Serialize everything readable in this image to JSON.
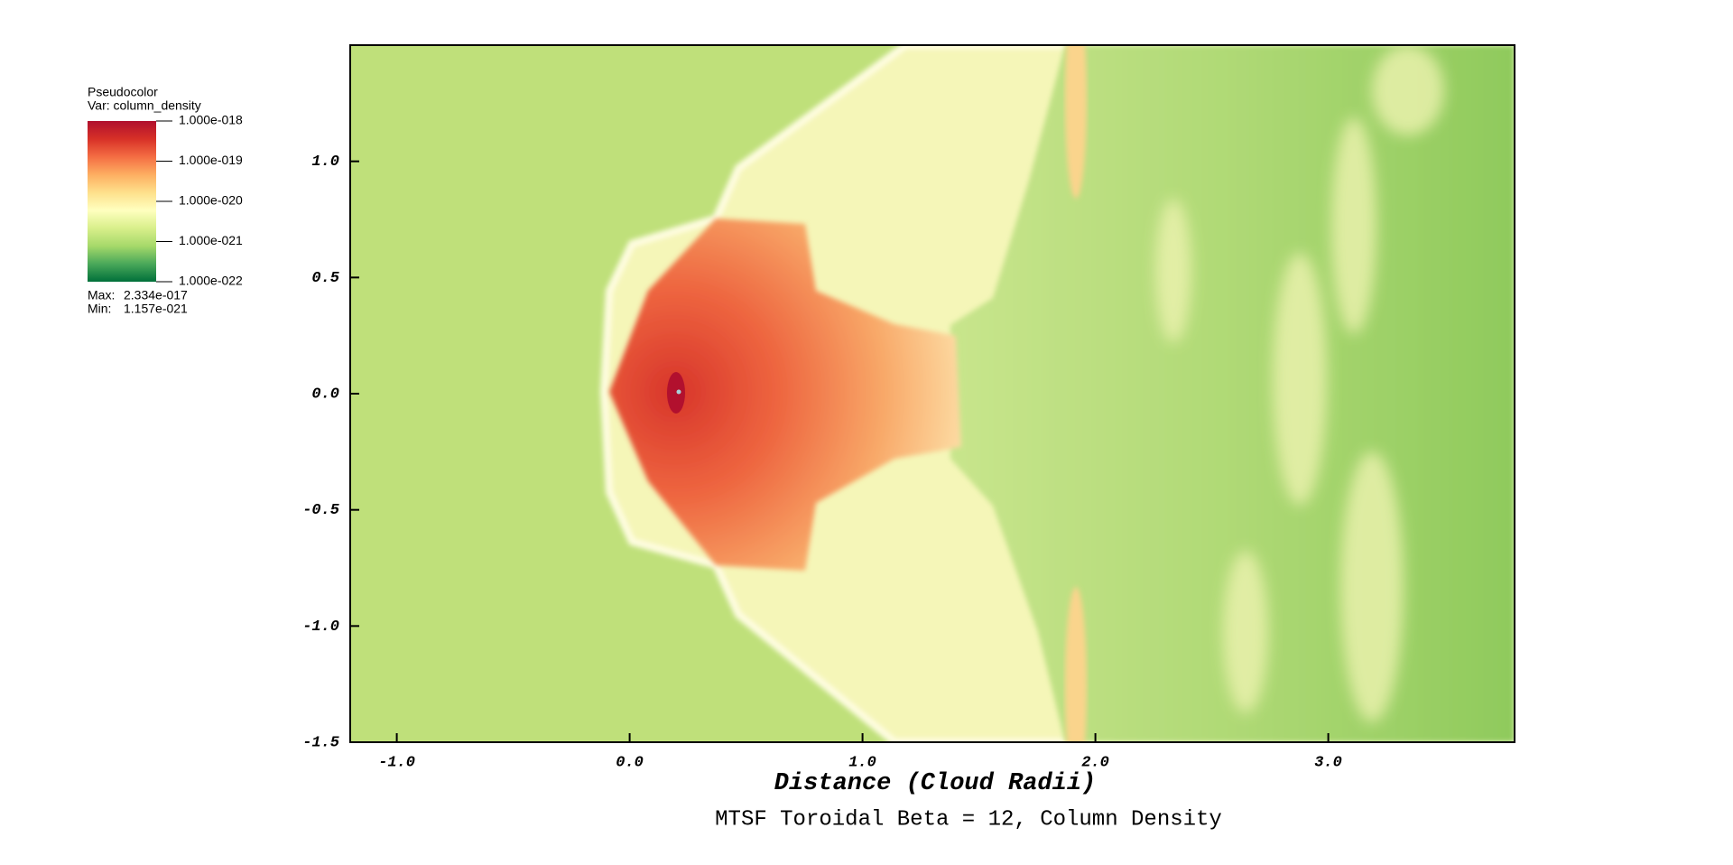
{
  "chart_data": {
    "type": "pseudocolor",
    "title": "MTSF Toroidal Beta = 12, Column Density",
    "xlabel": "Distance (Cloud Radii)",
    "xlim": [
      -1.2,
      3.8
    ],
    "ylim": [
      -1.5,
      1.5
    ],
    "xticks": [
      {
        "value": -1,
        "label": "-1.0"
      },
      {
        "value": 0,
        "label": "0.0"
      },
      {
        "value": 1,
        "label": "1.0"
      },
      {
        "value": 2,
        "label": "2.0"
      },
      {
        "value": 3,
        "label": "3.0"
      }
    ],
    "yticks": [
      {
        "value": -1.5,
        "label": "-1.5"
      },
      {
        "value": -1,
        "label": "-1.0"
      },
      {
        "value": -0.5,
        "label": "-0.5"
      },
      {
        "value": 0,
        "label": "0.0"
      },
      {
        "value": 0.5,
        "label": "0.5"
      },
      {
        "value": 1,
        "label": "1.0"
      }
    ],
    "legend": {
      "plot": "Pseudocolor",
      "variable": "Var: column_density",
      "log": true,
      "clim": [
        1e-22,
        1e-18
      ],
      "ticks": [
        {
          "value": 1e-18,
          "label": "1.000e-018"
        },
        {
          "value": 1e-19,
          "label": "1.000e-019"
        },
        {
          "value": 1e-20,
          "label": "1.000e-020"
        },
        {
          "value": 1e-21,
          "label": "1.000e-021"
        },
        {
          "value": 1e-22,
          "label": "1.000e-022"
        }
      ],
      "colormap": [
        "#00703a",
        "#4aa85a",
        "#a6d96a",
        "#d9ef8b",
        "#ffffbf",
        "#fee08b",
        "#fdae61",
        "#f46d43",
        "#d73027",
        "#b0102e"
      ],
      "stats": {
        "names": [
          "Max:",
          "Min:"
        ],
        "values": [
          2.334e-17,
          1.157e-21
        ],
        "value_labels": [
          "2.334e-017",
          "1.157e-021"
        ]
      }
    }
  }
}
